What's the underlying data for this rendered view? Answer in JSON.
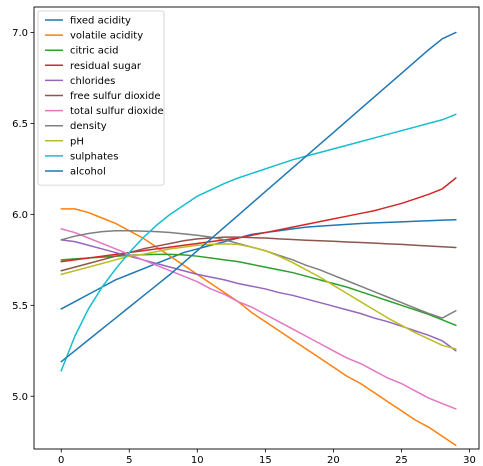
{
  "chart_data": {
    "type": "line",
    "title": "",
    "xlabel": "",
    "ylabel": "",
    "xlim": [
      -2.0,
      30.7
    ],
    "ylim": [
      4.71,
      7.14
    ],
    "xticks": [
      0,
      5,
      10,
      15,
      20,
      25,
      30
    ],
    "yticks": [
      5.0,
      5.5,
      6.0,
      6.5,
      7.0
    ],
    "x": [
      0,
      1,
      2,
      3,
      4,
      5,
      6,
      7,
      8,
      9,
      10,
      11,
      12,
      13,
      14,
      15,
      16,
      17,
      18,
      19,
      20,
      21,
      22,
      23,
      24,
      25,
      26,
      27,
      28,
      29
    ],
    "grid": false,
    "legend_position": "upper-left",
    "series": [
      {
        "name": "fixed acidity",
        "color": "#1f77b4",
        "values": [
          5.48,
          5.52,
          5.56,
          5.6,
          5.64,
          5.67,
          5.7,
          5.73,
          5.76,
          5.79,
          5.81,
          5.83,
          5.85,
          5.87,
          5.89,
          5.9,
          5.91,
          5.92,
          5.93,
          5.935,
          5.94,
          5.945,
          5.95,
          5.953,
          5.956,
          5.959,
          5.962,
          5.965,
          5.968,
          5.97
        ]
      },
      {
        "name": "volatile acidity",
        "color": "#ff7f0e",
        "values": [
          6.03,
          6.03,
          6.01,
          5.98,
          5.95,
          5.91,
          5.87,
          5.82,
          5.77,
          5.72,
          5.67,
          5.62,
          5.57,
          5.52,
          5.46,
          5.41,
          5.36,
          5.31,
          5.26,
          5.21,
          5.16,
          5.11,
          5.07,
          5.02,
          4.97,
          4.92,
          4.87,
          4.83,
          4.78,
          4.73
        ]
      },
      {
        "name": "citric acid",
        "color": "#2ca02c",
        "values": [
          5.75,
          5.755,
          5.76,
          5.765,
          5.77,
          5.775,
          5.778,
          5.78,
          5.78,
          5.777,
          5.77,
          5.76,
          5.75,
          5.74,
          5.725,
          5.71,
          5.695,
          5.68,
          5.66,
          5.64,
          5.62,
          5.6,
          5.575,
          5.55,
          5.525,
          5.5,
          5.475,
          5.45,
          5.42,
          5.39
        ]
      },
      {
        "name": "residual sugar",
        "color": "#d62728",
        "values": [
          5.74,
          5.75,
          5.76,
          5.77,
          5.78,
          5.79,
          5.8,
          5.81,
          5.82,
          5.83,
          5.84,
          5.85,
          5.86,
          5.87,
          5.885,
          5.9,
          5.915,
          5.93,
          5.945,
          5.96,
          5.975,
          5.99,
          6.005,
          6.02,
          6.04,
          6.06,
          6.085,
          6.11,
          6.14,
          6.2
        ]
      },
      {
        "name": "chlorides",
        "color": "#9467bd",
        "values": [
          5.86,
          5.85,
          5.83,
          5.81,
          5.79,
          5.77,
          5.75,
          5.73,
          5.71,
          5.69,
          5.67,
          5.655,
          5.64,
          5.62,
          5.605,
          5.59,
          5.57,
          5.555,
          5.535,
          5.515,
          5.495,
          5.475,
          5.455,
          5.43,
          5.41,
          5.385,
          5.36,
          5.335,
          5.305,
          5.25
        ]
      },
      {
        "name": "free sulfur dioxide",
        "color": "#8c564b",
        "values": [
          5.69,
          5.71,
          5.73,
          5.75,
          5.77,
          5.79,
          5.81,
          5.825,
          5.84,
          5.855,
          5.865,
          5.87,
          5.875,
          5.875,
          5.872,
          5.87,
          5.865,
          5.862,
          5.858,
          5.855,
          5.852,
          5.848,
          5.845,
          5.842,
          5.838,
          5.835,
          5.83,
          5.826,
          5.822,
          5.818
        ]
      },
      {
        "name": "total sulfur dioxide",
        "color": "#e377c2",
        "values": [
          5.92,
          5.9,
          5.87,
          5.84,
          5.81,
          5.78,
          5.75,
          5.72,
          5.69,
          5.66,
          5.63,
          5.59,
          5.56,
          5.52,
          5.49,
          5.45,
          5.41,
          5.37,
          5.33,
          5.29,
          5.25,
          5.21,
          5.18,
          5.14,
          5.1,
          5.07,
          5.03,
          4.99,
          4.96,
          4.93
        ]
      },
      {
        "name": "density",
        "color": "#7f7f7f",
        "values": [
          5.86,
          5.88,
          5.895,
          5.905,
          5.91,
          5.91,
          5.908,
          5.905,
          5.9,
          5.893,
          5.885,
          5.875,
          5.86,
          5.84,
          5.82,
          5.8,
          5.775,
          5.75,
          5.72,
          5.695,
          5.665,
          5.635,
          5.605,
          5.575,
          5.545,
          5.515,
          5.485,
          5.455,
          5.43,
          5.47
        ]
      },
      {
        "name": "pH",
        "color": "#bcbd22",
        "values": [
          5.67,
          5.69,
          5.71,
          5.73,
          5.75,
          5.77,
          5.78,
          5.795,
          5.81,
          5.82,
          5.83,
          5.835,
          5.838,
          5.835,
          5.82,
          5.8,
          5.77,
          5.735,
          5.695,
          5.655,
          5.61,
          5.565,
          5.52,
          5.475,
          5.43,
          5.39,
          5.35,
          5.315,
          5.28,
          5.26
        ]
      },
      {
        "name": "sulphates",
        "color": "#17becf",
        "values": [
          5.14,
          5.33,
          5.48,
          5.6,
          5.7,
          5.79,
          5.87,
          5.94,
          6.0,
          6.05,
          6.1,
          6.135,
          6.17,
          6.2,
          6.225,
          6.25,
          6.275,
          6.3,
          6.32,
          6.34,
          6.36,
          6.38,
          6.4,
          6.42,
          6.44,
          6.46,
          6.48,
          6.5,
          6.52,
          6.55
        ]
      },
      {
        "name": "alcohol",
        "color": "#1f77b4",
        "values": [
          5.19,
          5.25,
          5.31,
          5.37,
          5.43,
          5.49,
          5.55,
          5.61,
          5.67,
          5.735,
          5.8,
          5.865,
          5.93,
          5.995,
          6.06,
          6.125,
          6.19,
          6.255,
          6.32,
          6.385,
          6.45,
          6.515,
          6.58,
          6.645,
          6.71,
          6.775,
          6.84,
          6.905,
          6.965,
          7.0
        ]
      }
    ]
  }
}
